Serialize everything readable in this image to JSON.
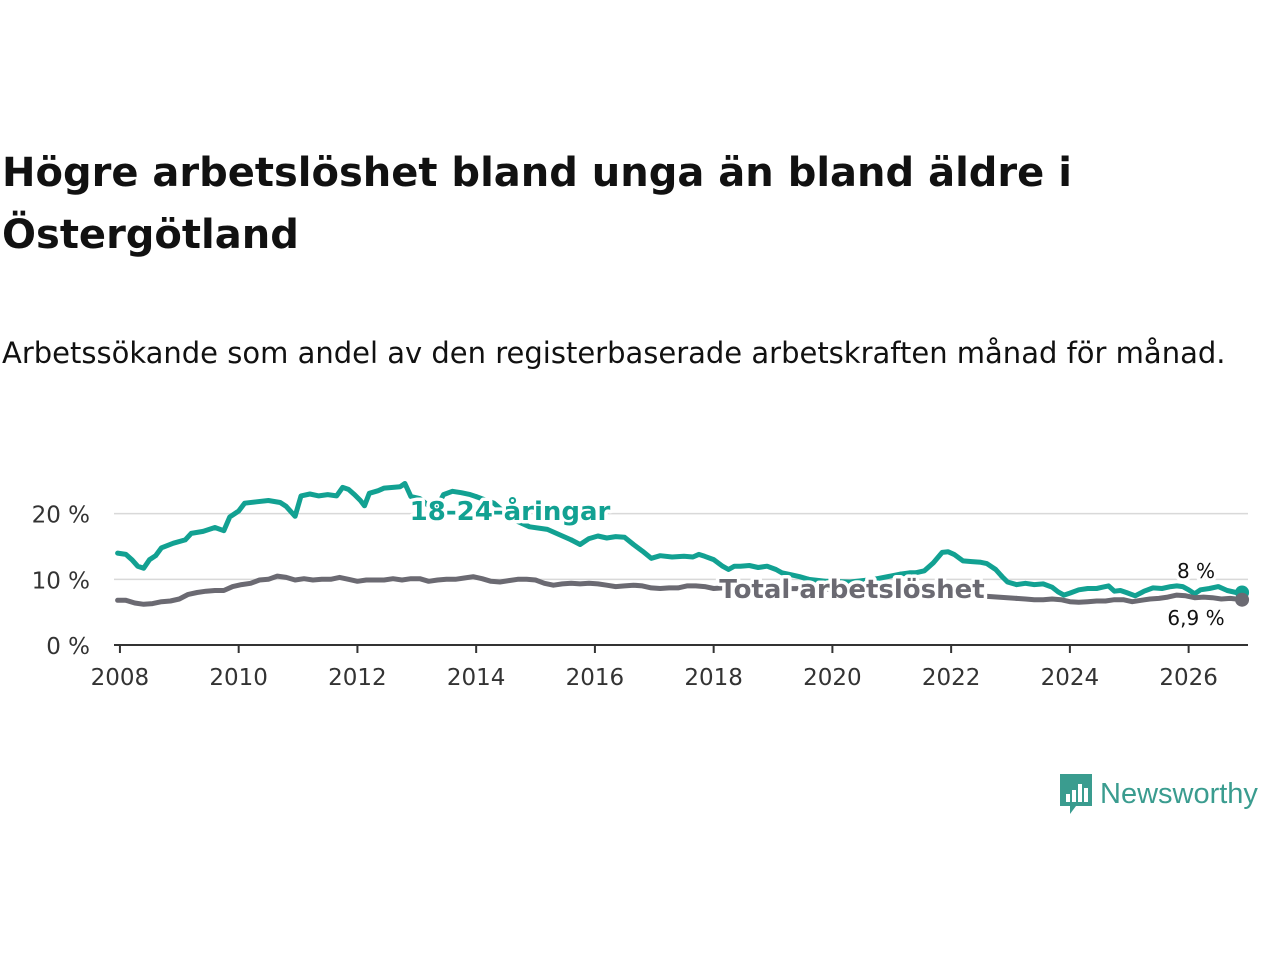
{
  "title": "Högre arbetslöshet bland unga än bland äldre i Östergötland",
  "subtitle": "Arbetssökande som andel av den registerbaserade arbetskraften månad för månad.",
  "brand": {
    "name": "Newsworthy",
    "color": "#3a9c8f"
  },
  "chart_data": {
    "type": "line",
    "ylim": [
      0,
      30
    ],
    "xlim": [
      2007.9,
      2027.0
    ],
    "y_ticks": [
      {
        "value": 0,
        "label": "0 %"
      },
      {
        "value": 10,
        "label": "10 %"
      },
      {
        "value": 20,
        "label": "20 %"
      }
    ],
    "x_ticks": [
      {
        "value": 2008,
        "label": "2008"
      },
      {
        "value": 2010,
        "label": "2010"
      },
      {
        "value": 2012,
        "label": "2012"
      },
      {
        "value": 2014,
        "label": "2014"
      },
      {
        "value": 2016,
        "label": "2016"
      },
      {
        "value": 2018,
        "label": "2018"
      },
      {
        "value": 2020,
        "label": "2020"
      },
      {
        "value": 2022,
        "label": "2022"
      },
      {
        "value": 2024,
        "label": "2024"
      },
      {
        "value": 2026,
        "label": "2026"
      }
    ],
    "grid": true,
    "series": [
      {
        "name": "18-24-åringar",
        "label": "18-24-åringar",
        "color": "#12a192",
        "end_label": "8 %",
        "points": [
          [
            2007.96,
            14.0
          ],
          [
            2008.1,
            13.8
          ],
          [
            2008.2,
            13.0
          ],
          [
            2008.3,
            12.0
          ],
          [
            2008.4,
            11.7
          ],
          [
            2008.5,
            13.0
          ],
          [
            2008.6,
            13.6
          ],
          [
            2008.7,
            14.8
          ],
          [
            2008.9,
            15.5
          ],
          [
            2009.1,
            16.0
          ],
          [
            2009.2,
            17.0
          ],
          [
            2009.4,
            17.3
          ],
          [
            2009.6,
            17.9
          ],
          [
            2009.75,
            17.4
          ],
          [
            2009.85,
            19.5
          ],
          [
            2010.0,
            20.4
          ],
          [
            2010.1,
            21.6
          ],
          [
            2010.3,
            21.8
          ],
          [
            2010.5,
            22.0
          ],
          [
            2010.7,
            21.7
          ],
          [
            2010.8,
            21.1
          ],
          [
            2010.95,
            19.6
          ],
          [
            2011.05,
            22.7
          ],
          [
            2011.2,
            23.0
          ],
          [
            2011.35,
            22.7
          ],
          [
            2011.5,
            22.9
          ],
          [
            2011.65,
            22.7
          ],
          [
            2011.75,
            24.0
          ],
          [
            2011.85,
            23.7
          ],
          [
            2011.95,
            22.9
          ],
          [
            2012.05,
            22.0
          ],
          [
            2012.12,
            21.2
          ],
          [
            2012.2,
            23.1
          ],
          [
            2012.35,
            23.5
          ],
          [
            2012.45,
            23.9
          ],
          [
            2012.6,
            24.0
          ],
          [
            2012.72,
            24.1
          ],
          [
            2012.8,
            24.6
          ],
          [
            2012.9,
            22.6
          ],
          [
            2013.05,
            22.3
          ],
          [
            2013.2,
            21.2
          ],
          [
            2013.3,
            20.3
          ],
          [
            2013.45,
            22.9
          ],
          [
            2013.6,
            23.4
          ],
          [
            2013.75,
            23.2
          ],
          [
            2013.9,
            22.9
          ],
          [
            2014.0,
            22.6
          ]
        ],
        "points_tail": [
          [
            2015.6,
            16.0
          ],
          [
            2015.75,
            15.3
          ],
          [
            2015.9,
            16.2
          ],
          [
            2016.05,
            16.6
          ],
          [
            2016.2,
            16.3
          ],
          [
            2016.35,
            16.5
          ],
          [
            2016.5,
            16.4
          ],
          [
            2016.65,
            15.3
          ],
          [
            2016.8,
            14.3
          ],
          [
            2016.95,
            13.2
          ],
          [
            2017.1,
            13.6
          ],
          [
            2017.3,
            13.4
          ],
          [
            2017.5,
            13.5
          ],
          [
            2017.65,
            13.4
          ],
          [
            2017.75,
            13.8
          ],
          [
            2017.85,
            13.5
          ],
          [
            2018.0,
            13.0
          ],
          [
            2018.15,
            12.0
          ],
          [
            2018.25,
            11.5
          ],
          [
            2018.35,
            12.0
          ],
          [
            2018.45,
            12.0
          ],
          [
            2018.6,
            12.1
          ],
          [
            2018.75,
            11.8
          ],
          [
            2018.9,
            12.0
          ],
          [
            2019.05,
            11.5
          ],
          [
            2019.15,
            11.0
          ],
          [
            2019.3,
            10.7
          ],
          [
            2019.45,
            10.4
          ],
          [
            2019.6,
            10.0
          ]
        ],
        "points_late": [
          [
            2021.15,
            10.8
          ],
          [
            2021.3,
            11.0
          ],
          [
            2021.4,
            11.0
          ],
          [
            2021.55,
            11.3
          ],
          [
            2021.7,
            12.5
          ],
          [
            2021.85,
            14.1
          ],
          [
            2021.95,
            14.2
          ],
          [
            2022.05,
            13.8
          ],
          [
            2022.2,
            12.8
          ],
          [
            2022.35,
            12.7
          ],
          [
            2022.5,
            12.6
          ],
          [
            2022.6,
            12.4
          ],
          [
            2022.75,
            11.5
          ],
          [
            2022.85,
            10.5
          ]
        ],
        "points_end": [
          [
            2023.1,
            9.2
          ],
          [
            2023.25,
            9.4
          ],
          [
            2023.4,
            9.2
          ],
          [
            2023.55,
            9.3
          ],
          [
            2023.7,
            8.8
          ],
          [
            2023.8,
            8.1
          ],
          [
            2023.9,
            7.6
          ],
          [
            2024.0,
            7.9
          ],
          [
            2024.15,
            8.4
          ],
          [
            2024.3,
            8.6
          ],
          [
            2024.45,
            8.6
          ],
          [
            2024.55,
            8.8
          ],
          [
            2024.65,
            9.0
          ],
          [
            2024.75,
            8.2
          ],
          [
            2024.85,
            8.3
          ],
          [
            2024.95,
            8.0
          ],
          [
            2025.1,
            7.5
          ],
          [
            2025.25,
            8.2
          ],
          [
            2025.4,
            8.7
          ],
          [
            2025.55,
            8.6
          ],
          [
            2025.7,
            8.9
          ],
          [
            2025.8,
            9.0
          ],
          [
            2025.9,
            8.9
          ],
          [
            2026.0,
            8.4
          ],
          [
            2026.1,
            7.8
          ],
          [
            2026.2,
            8.4
          ],
          [
            2026.35,
            8.6
          ],
          [
            2026.5,
            8.9
          ],
          [
            2026.65,
            8.3
          ],
          [
            2026.8,
            8.0
          ],
          [
            2026.9,
            8.0
          ]
        ]
      },
      {
        "name": "Total arbetslöshet",
        "label": "Total arbetslöshet",
        "color": "#6b6a72",
        "end_label": "6,9 %",
        "points": [
          [
            2007.96,
            6.8
          ],
          [
            2008.1,
            6.8
          ],
          [
            2008.25,
            6.4
          ],
          [
            2008.4,
            6.2
          ],
          [
            2008.55,
            6.3
          ],
          [
            2008.7,
            6.6
          ],
          [
            2008.85,
            6.7
          ],
          [
            2009.0,
            7.0
          ],
          [
            2009.15,
            7.7
          ],
          [
            2009.3,
            8.0
          ],
          [
            2009.45,
            8.2
          ],
          [
            2009.6,
            8.3
          ],
          [
            2009.75,
            8.3
          ],
          [
            2009.9,
            8.9
          ],
          [
            2010.05,
            9.2
          ],
          [
            2010.2,
            9.4
          ],
          [
            2010.35,
            9.9
          ],
          [
            2010.5,
            10.0
          ],
          [
            2010.65,
            10.5
          ],
          [
            2010.8,
            10.3
          ],
          [
            2010.95,
            9.9
          ],
          [
            2011.1,
            10.1
          ],
          [
            2011.25,
            9.9
          ],
          [
            2011.4,
            10.0
          ],
          [
            2011.55,
            10.0
          ],
          [
            2011.7,
            10.3
          ],
          [
            2011.85,
            10.0
          ],
          [
            2012.0,
            9.7
          ],
          [
            2012.15,
            9.9
          ],
          [
            2012.3,
            9.9
          ],
          [
            2012.45,
            9.9
          ],
          [
            2012.6,
            10.1
          ],
          [
            2012.75,
            9.9
          ],
          [
            2012.9,
            10.1
          ],
          [
            2013.05,
            10.1
          ],
          [
            2013.2,
            9.7
          ],
          [
            2013.35,
            9.9
          ],
          [
            2013.5,
            10.0
          ],
          [
            2013.65,
            10.0
          ],
          [
            2013.8,
            10.2
          ],
          [
            2013.95,
            10.4
          ],
          [
            2014.1,
            10.1
          ],
          [
            2014.25,
            9.7
          ],
          [
            2014.4,
            9.6
          ],
          [
            2014.55,
            9.8
          ],
          [
            2014.7,
            10.0
          ],
          [
            2014.85,
            10.0
          ],
          [
            2015.0,
            9.9
          ],
          [
            2015.15,
            9.4
          ],
          [
            2015.3,
            9.1
          ],
          [
            2015.45,
            9.3
          ],
          [
            2015.6,
            9.4
          ],
          [
            2015.75,
            9.3
          ],
          [
            2015.9,
            9.4
          ],
          [
            2016.05,
            9.3
          ],
          [
            2016.2,
            9.1
          ],
          [
            2016.35,
            8.9
          ],
          [
            2016.5,
            9.0
          ],
          [
            2016.65,
            9.1
          ],
          [
            2016.8,
            9.0
          ],
          [
            2016.95,
            8.7
          ],
          [
            2017.1,
            8.6
          ],
          [
            2017.25,
            8.7
          ],
          [
            2017.4,
            8.7
          ],
          [
            2017.55,
            9.0
          ],
          [
            2017.7,
            9.0
          ],
          [
            2017.85,
            8.9
          ],
          [
            2018.0,
            8.6
          ],
          [
            2018.15,
            8.7
          ],
          [
            2018.3,
            8.7
          ],
          [
            2018.45,
            8.5
          ]
        ],
        "points_end": [
          [
            2023.1,
            7.1
          ],
          [
            2023.25,
            7.0
          ],
          [
            2023.4,
            6.9
          ],
          [
            2023.55,
            6.9
          ],
          [
            2023.7,
            7.0
          ],
          [
            2023.85,
            6.9
          ],
          [
            2024.0,
            6.6
          ],
          [
            2024.15,
            6.5
          ],
          [
            2024.3,
            6.6
          ],
          [
            2024.45,
            6.7
          ],
          [
            2024.6,
            6.7
          ],
          [
            2024.75,
            6.9
          ],
          [
            2024.9,
            6.9
          ],
          [
            2025.05,
            6.6
          ],
          [
            2025.2,
            6.8
          ],
          [
            2025.35,
            7.0
          ],
          [
            2025.5,
            7.1
          ],
          [
            2025.65,
            7.3
          ],
          [
            2025.8,
            7.6
          ],
          [
            2025.95,
            7.5
          ],
          [
            2026.1,
            7.2
          ],
          [
            2026.25,
            7.3
          ],
          [
            2026.4,
            7.2
          ],
          [
            2026.55,
            7.0
          ],
          [
            2026.7,
            7.1
          ],
          [
            2026.8,
            7.0
          ],
          [
            2026.9,
            6.9
          ]
        ]
      }
    ]
  }
}
